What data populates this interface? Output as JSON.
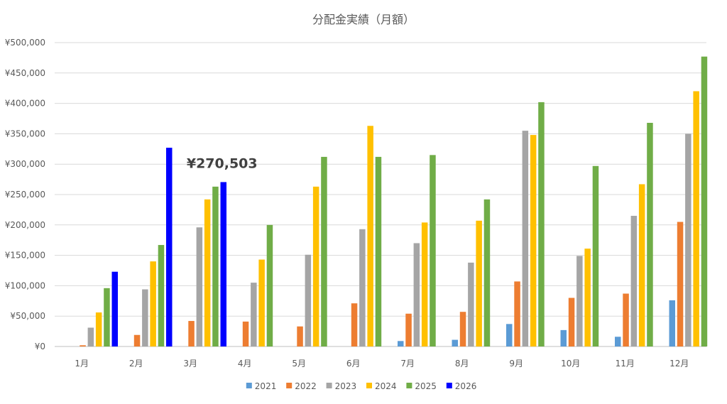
{
  "chart_data": {
    "type": "bar",
    "title": "分配金実績（月額）",
    "xlabel": "",
    "ylabel": "",
    "categories": [
      "1月",
      "2月",
      "3月",
      "4月",
      "5月",
      "6月",
      "7月",
      "8月",
      "9月",
      "10月",
      "11月",
      "12月"
    ],
    "ylim": [
      0,
      500000
    ],
    "yticks": [
      0,
      50000,
      100000,
      150000,
      200000,
      250000,
      300000,
      350000,
      400000,
      450000,
      500000
    ],
    "ytick_labels": [
      "¥0",
      "¥50,000",
      "¥100,000",
      "¥150,000",
      "¥200,000",
      "¥250,000",
      "¥300,000",
      "¥350,000",
      "¥400,000",
      "¥450,000",
      "¥500,000"
    ],
    "grid": true,
    "legend_position": "bottom",
    "series": [
      {
        "name": "2021",
        "color": "#5B9BD5",
        "values": [
          0,
          0,
          0,
          0,
          0,
          0,
          9000,
          11000,
          37000,
          27000,
          16000,
          76000
        ]
      },
      {
        "name": "2022",
        "color": "#ED7D31",
        "values": [
          2000,
          19000,
          42000,
          41000,
          33000,
          71000,
          54000,
          57000,
          107000,
          80000,
          87000,
          205000
        ]
      },
      {
        "name": "2023",
        "color": "#A5A5A5",
        "values": [
          31000,
          94000,
          196000,
          105000,
          151000,
          193000,
          170000,
          138000,
          355000,
          149000,
          215000,
          350000
        ]
      },
      {
        "name": "2024",
        "color": "#FFC000",
        "values": [
          56000,
          140000,
          242000,
          143000,
          263000,
          363000,
          204000,
          207000,
          348000,
          161000,
          267000,
          420000
        ]
      },
      {
        "name": "2025",
        "color": "#70AD47",
        "values": [
          96000,
          167000,
          263000,
          200000,
          312000,
          312000,
          315000,
          242000,
          402000,
          297000,
          368000,
          477000
        ]
      },
      {
        "name": "2026",
        "color": "#0000FF",
        "values": [
          123000,
          327000,
          270503,
          null,
          null,
          null,
          null,
          null,
          null,
          null,
          null,
          null
        ]
      }
    ],
    "annotations": [
      {
        "text": "¥270,503",
        "category": "3月",
        "series": "2026"
      }
    ]
  }
}
